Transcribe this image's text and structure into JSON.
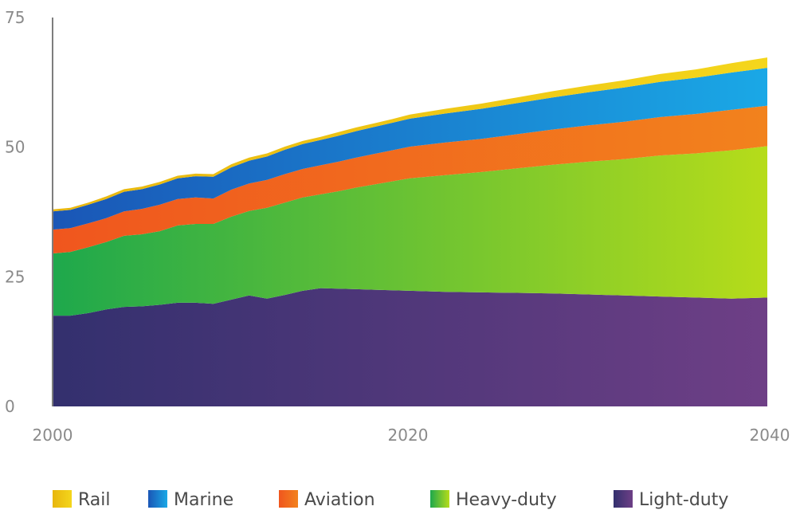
{
  "chart_data": {
    "type": "area",
    "stacked": true,
    "title": "",
    "xlabel": "",
    "ylabel": "",
    "xlim": [
      2000,
      2040
    ],
    "ylim": [
      0,
      75
    ],
    "x_ticks": [
      "2000",
      "2020",
      "2040"
    ],
    "y_ticks": [
      "0",
      "25",
      "50",
      "75"
    ],
    "legend_position": "bottom",
    "grid": false,
    "x": [
      2000,
      2001,
      2002,
      2003,
      2004,
      2005,
      2006,
      2007,
      2008,
      2009,
      2010,
      2011,
      2012,
      2013,
      2014,
      2015,
      2016,
      2017,
      2018,
      2019,
      2020,
      2022,
      2024,
      2026,
      2028,
      2030,
      2032,
      2034,
      2036,
      2038,
      2040
    ],
    "series": [
      {
        "name": "Light-duty",
        "colors": [
          "#33306e",
          "#6e3f86"
        ],
        "values": [
          17.5,
          17.5,
          18.0,
          18.7,
          19.2,
          19.3,
          19.6,
          20.0,
          20.0,
          19.8,
          20.6,
          21.4,
          20.8,
          21.5,
          22.3,
          22.8,
          22.7,
          22.6,
          22.5,
          22.4,
          22.3,
          22.1,
          22.0,
          21.9,
          21.8,
          21.6,
          21.4,
          21.2,
          21.0,
          20.8,
          21.0
        ]
      },
      {
        "name": "Heavy-duty",
        "colors": [
          "#1ea84c",
          "#b6dc1a"
        ],
        "values": [
          12.0,
          12.3,
          12.7,
          13.0,
          13.7,
          13.9,
          14.2,
          14.9,
          15.2,
          15.4,
          16.0,
          16.3,
          17.5,
          17.8,
          18.0,
          18.1,
          18.8,
          19.6,
          20.3,
          21.0,
          21.7,
          22.5,
          23.2,
          24.0,
          24.8,
          25.6,
          26.3,
          27.2,
          27.8,
          28.6,
          29.2
        ]
      },
      {
        "name": "Aviation",
        "colors": [
          "#f0561e",
          "#f2821d"
        ],
        "values": [
          4.6,
          4.6,
          4.6,
          4.6,
          4.7,
          4.9,
          5.1,
          5.1,
          5.1,
          4.9,
          5.2,
          5.3,
          5.4,
          5.5,
          5.5,
          5.6,
          5.7,
          5.8,
          5.9,
          6.0,
          6.1,
          6.3,
          6.4,
          6.6,
          6.8,
          7.0,
          7.2,
          7.4,
          7.6,
          7.8,
          7.8
        ]
      },
      {
        "name": "Marine",
        "colors": [
          "#1a56b6",
          "#1aa8e6"
        ],
        "values": [
          3.5,
          3.5,
          3.6,
          3.7,
          3.8,
          3.8,
          3.9,
          4.0,
          4.1,
          4.2,
          4.3,
          4.4,
          4.5,
          4.7,
          4.8,
          4.9,
          5.0,
          5.1,
          5.2,
          5.3,
          5.4,
          5.6,
          5.8,
          6.0,
          6.2,
          6.4,
          6.6,
          6.8,
          7.0,
          7.2,
          7.3
        ]
      },
      {
        "name": "Rail",
        "colors": [
          "#e8b60d",
          "#f4d61c"
        ],
        "values": [
          0.4,
          0.4,
          0.4,
          0.5,
          0.5,
          0.5,
          0.5,
          0.5,
          0.5,
          0.5,
          0.6,
          0.6,
          0.6,
          0.6,
          0.6,
          0.6,
          0.7,
          0.7,
          0.7,
          0.7,
          0.8,
          0.9,
          1.0,
          1.1,
          1.2,
          1.3,
          1.4,
          1.5,
          1.6,
          1.8,
          2.0
        ]
      }
    ],
    "legend_order": [
      "Rail",
      "Marine",
      "Aviation",
      "Heavy-duty",
      "Light-duty"
    ]
  }
}
